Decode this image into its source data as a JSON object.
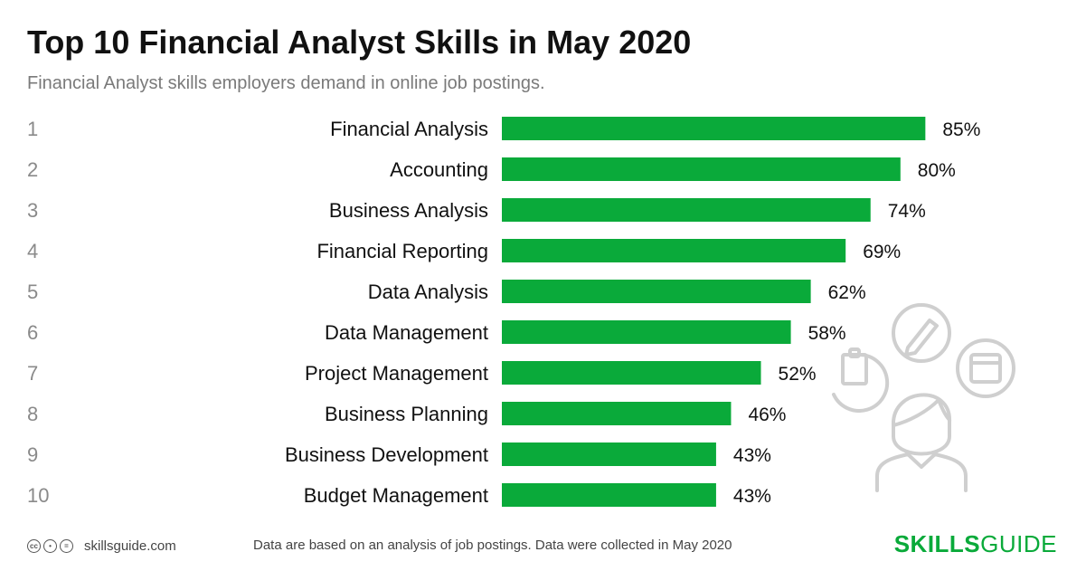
{
  "header": {
    "title": "Top 10 Financial Analyst Skills in May 2020",
    "subtitle": "Financial Analyst skills employers demand in online job postings."
  },
  "chart_data": {
    "type": "bar",
    "orientation": "horizontal",
    "ranks": [
      "1",
      "2",
      "3",
      "4",
      "5",
      "6",
      "7",
      "8",
      "9",
      "10"
    ],
    "categories": [
      "Financial Analysis",
      "Accounting",
      "Business Analysis",
      "Financial Reporting",
      "Data Analysis",
      "Data Management",
      "Project Management",
      "Business Planning",
      "Business Development",
      "Budget Management"
    ],
    "values": [
      85,
      80,
      74,
      69,
      62,
      58,
      52,
      46,
      43,
      43
    ],
    "value_labels": [
      "85%",
      "80%",
      "74%",
      "69%",
      "62%",
      "58%",
      "52%",
      "46%",
      "43%",
      "43%"
    ],
    "bar_color": "#0aaa3a",
    "grid": false
  },
  "footer": {
    "license_icons": [
      "cc-icon",
      "by-icon",
      "eq-icon"
    ],
    "site": "skillsguide.com",
    "note": "Data are based on an analysis of job postings. Data were collected in May 2020",
    "brand_bold": "SKILLS",
    "brand_light": "GUIDE"
  },
  "colors": {
    "accent": "#0aaa3a",
    "rank": "#8a8a8a",
    "subtitle": "#7a7a7a",
    "illustration": "#cfcfcf"
  }
}
